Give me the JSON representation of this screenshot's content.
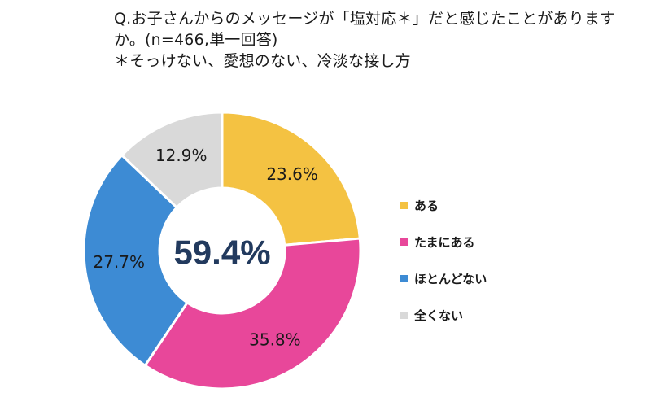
{
  "title": {
    "line1": "Q.お子さんからのメッセージが「塩対応＊」だと感じたことがありますか。(n=466,単一回答)",
    "line2": "＊そっけない、愛想のない、冷淡な接し方"
  },
  "center_value": "59.4%",
  "chart_data": {
    "type": "pie",
    "variant": "donut",
    "categories": [
      "ある",
      "たまにある",
      "ほとんどない",
      "全くない"
    ],
    "values": [
      23.6,
      35.8,
      27.7,
      12.9
    ],
    "labels": [
      "23.6%",
      "35.8%",
      "27.7%",
      "12.9%"
    ],
    "colors": [
      "#f4c242",
      "#e8479a",
      "#3d8bd4",
      "#d9d9d9"
    ],
    "start_angle": "12 o'clock",
    "direction": "clockwise",
    "legend_position": "right"
  }
}
